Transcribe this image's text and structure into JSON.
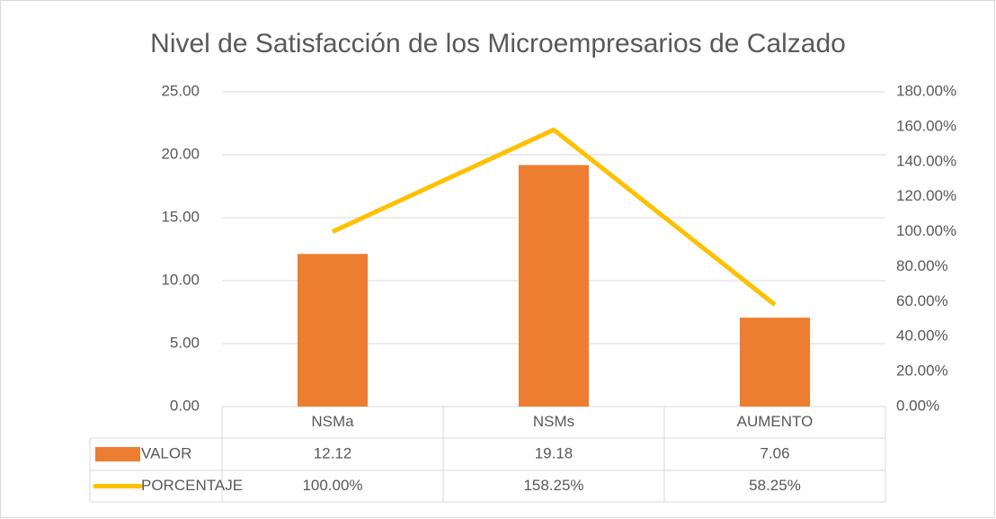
{
  "chart_data": {
    "type": "bar",
    "title": "Nivel de Satisfacción de los Microempresarios de Calzado",
    "categories": [
      "NSMa",
      "NSMs",
      "AUMENTO"
    ],
    "series": [
      {
        "name": "VALOR",
        "type": "bar",
        "color": "#ED7D31",
        "values": [
          12.12,
          19.18,
          7.06
        ],
        "value_labels": [
          "12.12",
          "19.18",
          "7.06"
        ]
      },
      {
        "name": "PORCENTAJE",
        "type": "line",
        "axis": "y2",
        "color": "#FFC000",
        "values": [
          100,
          158.25,
          58.25
        ],
        "value_labels": [
          "100.00%",
          "158.25%",
          "58.25%"
        ]
      }
    ],
    "ylim": [
      0,
      25
    ],
    "yticks": [
      {
        "value": 0,
        "label": "0.00"
      },
      {
        "value": 5,
        "label": "5.00"
      },
      {
        "value": 10,
        "label": "10.00"
      },
      {
        "value": 15,
        "label": "15.00"
      },
      {
        "value": 20,
        "label": "20.00"
      },
      {
        "value": 25,
        "label": "25.00"
      }
    ],
    "y2lim": [
      0,
      180
    ],
    "y2ticks": [
      {
        "value": 0,
        "label": "0.00%"
      },
      {
        "value": 20,
        "label": "20.00%"
      },
      {
        "value": 40,
        "label": "40.00%"
      },
      {
        "value": 60,
        "label": "60.00%"
      },
      {
        "value": 80,
        "label": "80.00%"
      },
      {
        "value": 100,
        "label": "100.00%"
      },
      {
        "value": 120,
        "label": "120.00%"
      },
      {
        "value": 140,
        "label": "140.00%"
      },
      {
        "value": 160,
        "label": "160.00%"
      },
      {
        "value": 180,
        "label": "180.00%"
      }
    ],
    "grid": true,
    "data_table": true
  }
}
